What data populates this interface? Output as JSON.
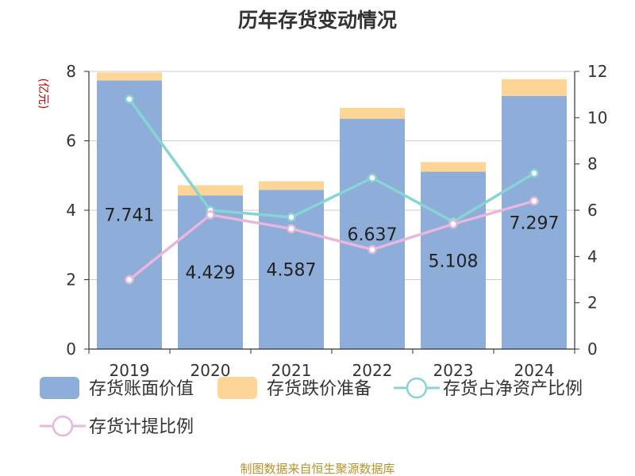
{
  "chart_data": {
    "type": "bar",
    "title": "历年存货变动情况",
    "categories": [
      "2019",
      "2020",
      "2021",
      "2022",
      "2023",
      "2024"
    ],
    "y_left": {
      "unit": "(亿元)",
      "lim": [
        0,
        8
      ],
      "ticks": [
        "0",
        "2",
        "4",
        "6",
        "8"
      ]
    },
    "y_right": {
      "lim": [
        0,
        12
      ],
      "ticks": [
        "0",
        "2",
        "4",
        "6",
        "8",
        "10",
        "12"
      ]
    },
    "grid": true,
    "legend_position": "bottom",
    "series": [
      {
        "name": "存货账面价值",
        "kind": "bar",
        "axis": "left",
        "color": "#8eadd9",
        "values": [
          7.741,
          4.429,
          4.587,
          6.637,
          5.108,
          7.297
        ],
        "labels": [
          "7.741",
          "4.429",
          "4.587",
          "6.637",
          "5.108",
          "7.297"
        ]
      },
      {
        "name": "存货跌价准备",
        "kind": "bar-stacked",
        "axis": "left",
        "color": "#fdd697",
        "values": [
          0.23,
          0.29,
          0.25,
          0.31,
          0.28,
          0.48
        ]
      },
      {
        "name": "存货占净资产比例",
        "kind": "line",
        "axis": "right",
        "color": "#86d4d4",
        "values": [
          10.8,
          6.0,
          5.7,
          7.4,
          5.5,
          7.6
        ]
      },
      {
        "name": "存货计提比例",
        "kind": "line",
        "axis": "right",
        "color": "#e8b7dd",
        "values": [
          3.0,
          5.8,
          5.2,
          4.3,
          5.4,
          6.4
        ]
      }
    ]
  },
  "source": "制图数据来自恒生聚源数据库"
}
